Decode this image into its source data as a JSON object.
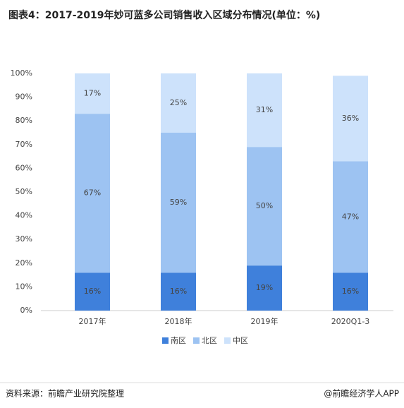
{
  "chart_data": {
    "type": "stacked_bar",
    "title": "图表4：2017-2019年妙可蓝多公司销售收入区域分布情况(单位：%)",
    "categories": [
      "2017年",
      "2018年",
      "2019年",
      "2020Q1-3"
    ],
    "series": [
      {
        "name": "南区",
        "color": "#3f80db",
        "values": [
          16,
          16,
          19,
          16
        ],
        "value_labels": [
          "16%",
          "16%",
          "19%",
          "16%"
        ]
      },
      {
        "name": "北区",
        "color": "#9dc3f2",
        "values": [
          67,
          59,
          50,
          47
        ],
        "value_labels": [
          "67%",
          "59%",
          "50%",
          "47%"
        ]
      },
      {
        "name": "中区",
        "color": "#cde2fb",
        "values": [
          17,
          25,
          31,
          36
        ],
        "value_labels": [
          "17%",
          "25%",
          "31%",
          "36%"
        ]
      }
    ],
    "ylim": [
      0,
      100
    ],
    "yticks": [
      {
        "value": 0,
        "label": "0%"
      },
      {
        "value": 10,
        "label": "10%"
      },
      {
        "value": 20,
        "label": "20%"
      },
      {
        "value": 30,
        "label": "30%"
      },
      {
        "value": 40,
        "label": "40%"
      },
      {
        "value": 50,
        "label": "50%"
      },
      {
        "value": 60,
        "label": "60%"
      },
      {
        "value": 70,
        "label": "70%"
      },
      {
        "value": 80,
        "label": "80%"
      },
      {
        "value": 90,
        "label": "90%"
      },
      {
        "value": 100,
        "label": "100%"
      }
    ],
    "source": "资料来源：前瞻产业研究院整理",
    "credit": "@前瞻经济学人APP"
  }
}
